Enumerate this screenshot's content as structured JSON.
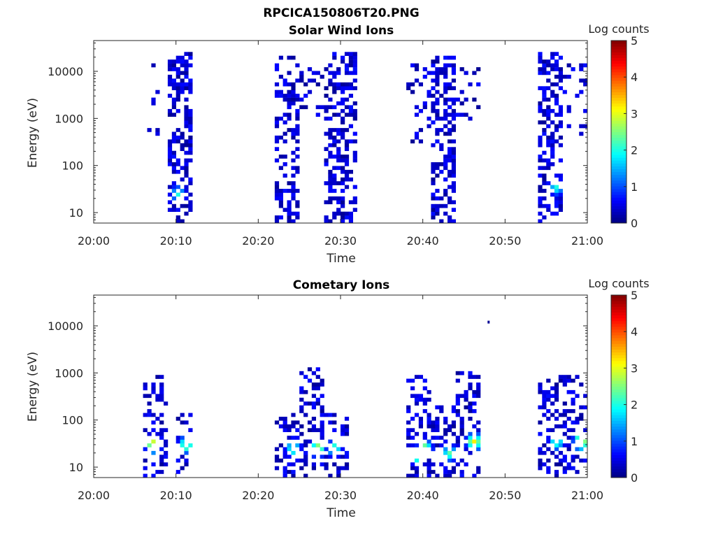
{
  "figure": {
    "title": "RPCICA150806T20.PNG"
  },
  "chart_data": [
    {
      "type": "heatmap",
      "title": "Solar Wind Ions",
      "xlabel": "Time",
      "ylabel": "Energy (eV)",
      "x_ticks": [
        "20:00",
        "20:10",
        "20:20",
        "20:30",
        "20:40",
        "20:50",
        "21:00"
      ],
      "xlim": [
        "20:00",
        "21:00"
      ],
      "yscale": "log",
      "y_ticks": [
        10,
        100,
        1000,
        10000
      ],
      "y_tick_labels": [
        "10",
        "100",
        "1000",
        "10000"
      ],
      "ylim": [
        6,
        45000
      ],
      "colorbar": {
        "label": "Log counts",
        "range": [
          0,
          5
        ],
        "ticks": [
          "0",
          "1",
          "2",
          "3",
          "4",
          "5"
        ],
        "colormap": "jet"
      },
      "bursts": [
        {
          "start": "20:06",
          "end": "20:08",
          "e_min": 400,
          "e_max": 15000,
          "intensity": 0.15
        },
        {
          "start": "20:09",
          "end": "20:12",
          "e_min": 6,
          "e_max": 25000,
          "intensity": 0.5
        },
        {
          "start": "20:22",
          "end": "20:25",
          "e_min": 6,
          "e_max": 20000,
          "intensity": 0.4
        },
        {
          "start": "20:25",
          "end": "20:28",
          "e_min": 700,
          "e_max": 15000,
          "intensity": 0.2
        },
        {
          "start": "20:28",
          "end": "20:32",
          "e_min": 6,
          "e_max": 25000,
          "intensity": 0.45
        },
        {
          "start": "20:38",
          "end": "20:41",
          "e_min": 300,
          "e_max": 15000,
          "intensity": 0.15
        },
        {
          "start": "20:41",
          "end": "20:44",
          "e_min": 6,
          "e_max": 20000,
          "intensity": 0.5
        },
        {
          "start": "20:44",
          "end": "20:47",
          "e_min": 700,
          "e_max": 12000,
          "intensity": 0.2
        },
        {
          "start": "20:54",
          "end": "20:57",
          "e_min": 6,
          "e_max": 25000,
          "intensity": 0.5
        },
        {
          "start": "20:57",
          "end": "21:00",
          "e_min": 400,
          "e_max": 15000,
          "intensity": 0.2
        }
      ],
      "hotspots": [
        {
          "time": "20:10",
          "energy": 25,
          "log_counts": 2.0
        },
        {
          "time": "20:56",
          "energy": 35,
          "log_counts": 2.0
        }
      ]
    },
    {
      "type": "heatmap",
      "title": "Cometary Ions",
      "xlabel": "Time",
      "ylabel": "Energy (eV)",
      "x_ticks": [
        "20:00",
        "20:10",
        "20:20",
        "20:30",
        "20:40",
        "20:50",
        "21:00"
      ],
      "xlim": [
        "20:00",
        "21:00"
      ],
      "yscale": "log",
      "y_ticks": [
        10,
        100,
        1000,
        10000
      ],
      "y_tick_labels": [
        "10",
        "100",
        "1000",
        "10000"
      ],
      "ylim": [
        6,
        45000
      ],
      "colorbar": {
        "label": "Log counts",
        "range": [
          0,
          5
        ],
        "ticks": [
          "0",
          "1",
          "2",
          "3",
          "4",
          "5"
        ],
        "colormap": "jet"
      },
      "bursts": [
        {
          "start": "20:06",
          "end": "20:09",
          "e_min": 6,
          "e_max": 900,
          "intensity": 0.35
        },
        {
          "start": "20:10",
          "end": "20:12",
          "e_min": 6,
          "e_max": 150,
          "intensity": 0.35
        },
        {
          "start": "20:22",
          "end": "20:25",
          "e_min": 6,
          "e_max": 150,
          "intensity": 0.3
        },
        {
          "start": "20:25",
          "end": "20:28",
          "e_min": 6,
          "e_max": 1200,
          "intensity": 0.35
        },
        {
          "start": "20:28",
          "end": "20:31",
          "e_min": 6,
          "e_max": 150,
          "intensity": 0.3
        },
        {
          "start": "20:38",
          "end": "20:41",
          "e_min": 6,
          "e_max": 900,
          "intensity": 0.35
        },
        {
          "start": "20:41",
          "end": "20:44",
          "e_min": 6,
          "e_max": 200,
          "intensity": 0.3
        },
        {
          "start": "20:44",
          "end": "20:47",
          "e_min": 6,
          "e_max": 1000,
          "intensity": 0.35
        },
        {
          "start": "20:54",
          "end": "21:00",
          "e_min": 6,
          "e_max": 900,
          "intensity": 0.35
        }
      ],
      "hotspots": [
        {
          "time": "20:07",
          "energy": 30,
          "log_counts": 3.3
        },
        {
          "time": "20:11",
          "energy": 30,
          "log_counts": 2.7
        },
        {
          "time": "20:24",
          "energy": 25,
          "log_counts": 2.3
        },
        {
          "time": "20:27",
          "energy": 25,
          "log_counts": 2.9
        },
        {
          "time": "20:29",
          "energy": 25,
          "log_counts": 2.3
        },
        {
          "time": "20:39",
          "energy": 18,
          "log_counts": 2.9
        },
        {
          "time": "20:40",
          "energy": 25,
          "log_counts": 2.7
        },
        {
          "time": "20:43",
          "energy": 20,
          "log_counts": 2.3
        },
        {
          "time": "20:46",
          "energy": 35,
          "log_counts": 3.2
        },
        {
          "time": "20:56",
          "energy": 35,
          "log_counts": 2.3
        },
        {
          "time": "20:59",
          "energy": 35,
          "log_counts": 3.4
        },
        {
          "time": "20:48",
          "energy": 12000,
          "log_counts": 0.1
        }
      ]
    }
  ]
}
